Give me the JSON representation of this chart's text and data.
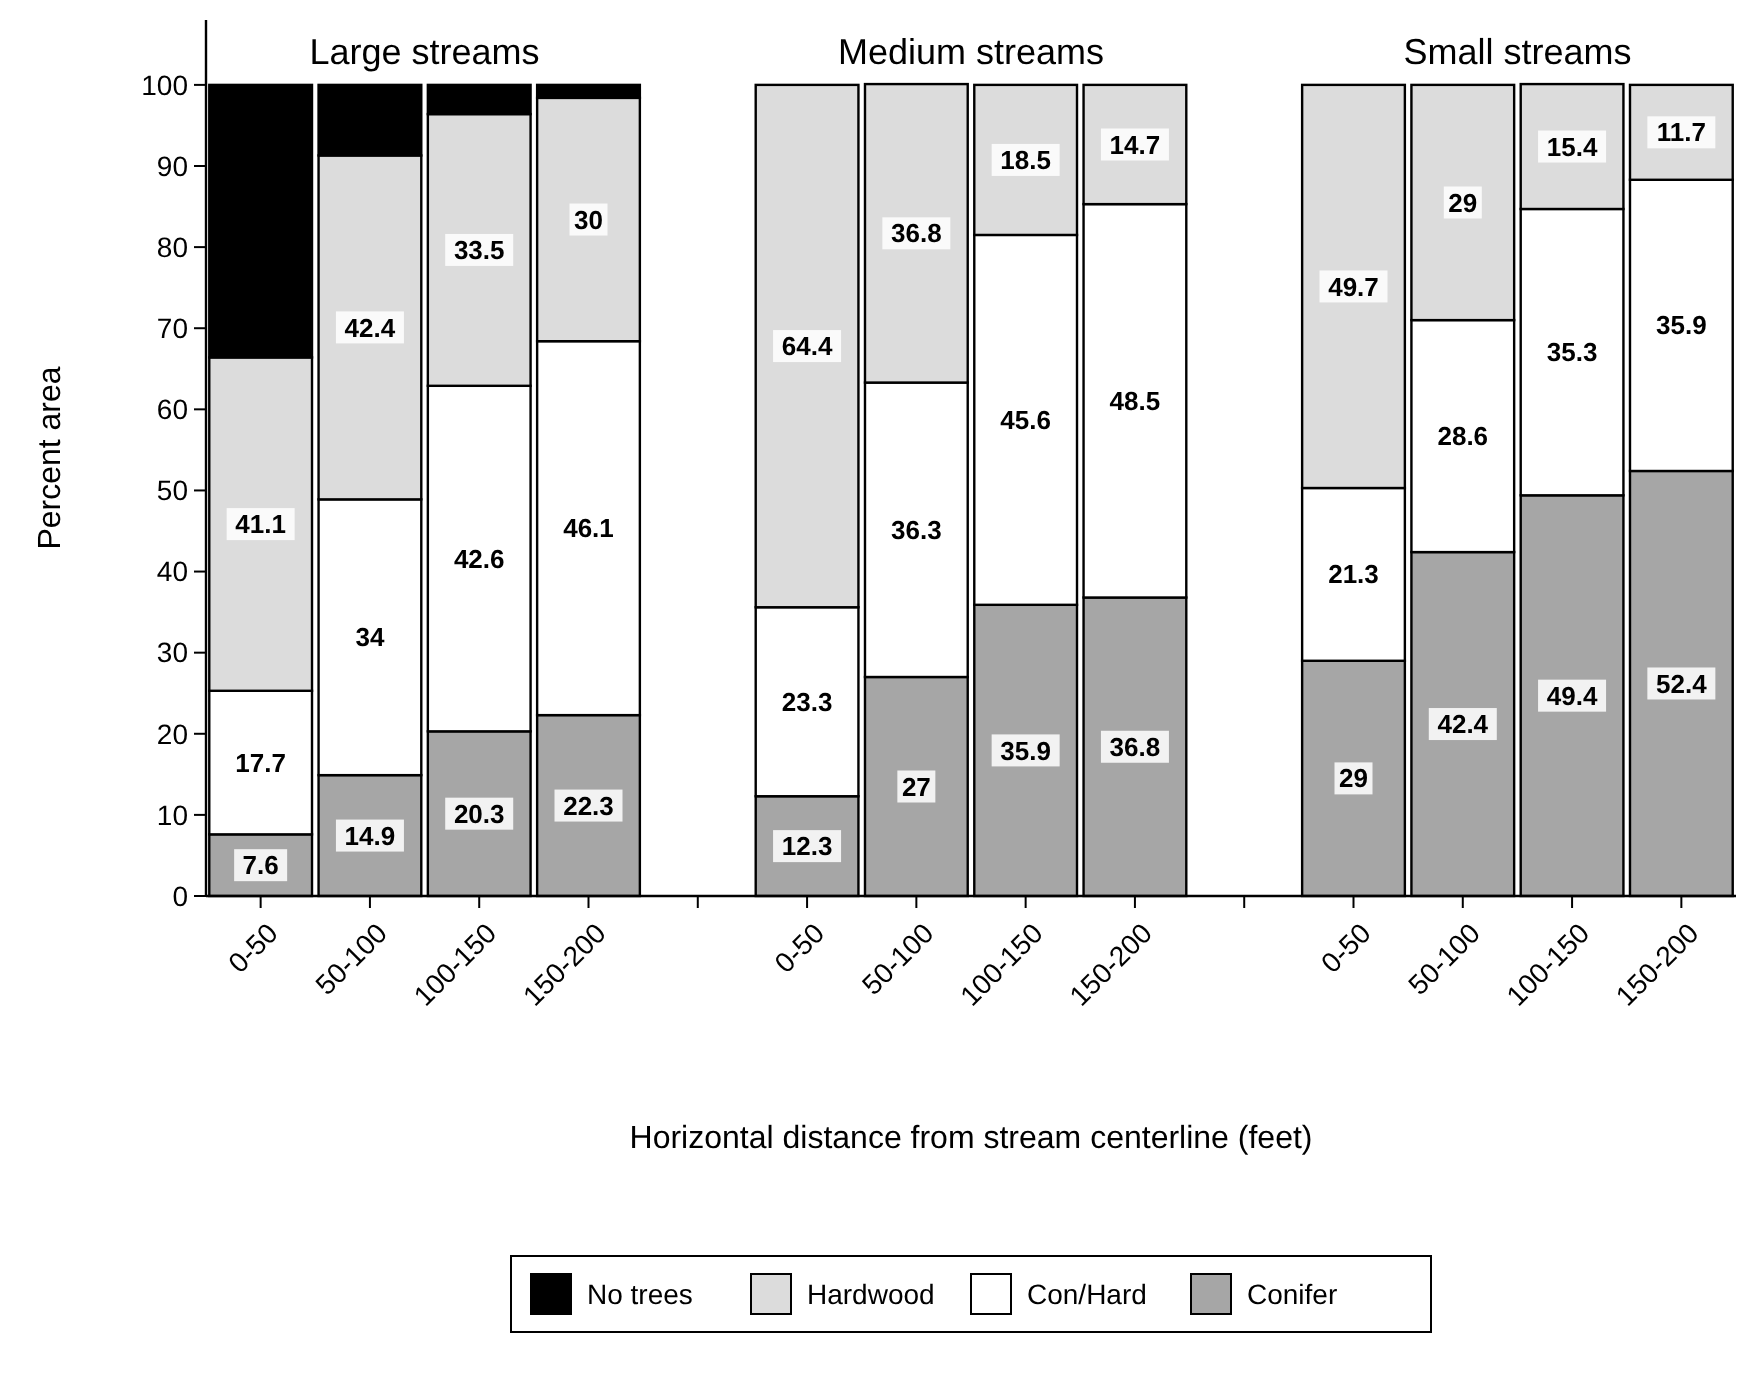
{
  "chart_data": {
    "type": "bar",
    "stacked": true,
    "xlabel": "Horizontal distance from stream centerline (feet)",
    "ylabel": "Percent area",
    "categories": [
      "0-50",
      "50-100",
      "100-150",
      "150-200",
      null,
      "0-50",
      "50-100",
      "100-150",
      "150-200",
      null,
      "0-50",
      "50-100",
      "100-150",
      "150-200"
    ],
    "series": [
      {
        "name": "Conifer",
        "color": "#a6a6a6",
        "values": [
          7.6,
          14.9,
          20.3,
          22.3,
          null,
          12.3,
          27,
          35.9,
          36.8,
          null,
          29,
          42.4,
          49.4,
          52.4
        ],
        "value_labels": [
          "7.6",
          "14.9",
          "20.3",
          "22.3",
          null,
          "12.3",
          "27",
          "35.9",
          "36.8",
          null,
          "29",
          "42.4",
          "49.4",
          "52.4"
        ]
      },
      {
        "name": "Con/Hard",
        "color": "#ffffff",
        "values": [
          17.7,
          34,
          42.6,
          46.1,
          null,
          23.3,
          36.3,
          45.6,
          48.5,
          null,
          21.3,
          28.6,
          35.3,
          35.9
        ],
        "value_labels": [
          "17.7",
          "34",
          "42.6",
          "46.1",
          null,
          "23.3",
          "36.3",
          "45.6",
          "48.5",
          null,
          "21.3",
          "28.6",
          "35.3",
          "35.9"
        ]
      },
      {
        "name": "Hardwood",
        "color": "#dcdcdc",
        "values": [
          41.1,
          42.4,
          33.5,
          30,
          null,
          64.4,
          36.8,
          18.5,
          14.7,
          null,
          49.7,
          29,
          15.4,
          11.7
        ],
        "value_labels": [
          "41.1",
          "42.4",
          "33.5",
          "30",
          null,
          "64.4",
          "36.8",
          "18.5",
          "14.7",
          null,
          "49.7",
          "29",
          "15.4",
          "11.7"
        ]
      },
      {
        "name": "No trees",
        "color": "#000000",
        "values": [
          33.6,
          8.7,
          3.6,
          1.6,
          null,
          null,
          null,
          null,
          null,
          null,
          null,
          null,
          null,
          null
        ]
      }
    ],
    "ylim": [
      0,
      108
    ],
    "yticks": [
      0,
      10,
      20,
      30,
      40,
      50,
      60,
      70,
      80,
      90,
      100
    ],
    "grid": false,
    "legend": "bottom",
    "annotations": [
      "Large streams",
      "Medium streams",
      "Small streams"
    ]
  }
}
